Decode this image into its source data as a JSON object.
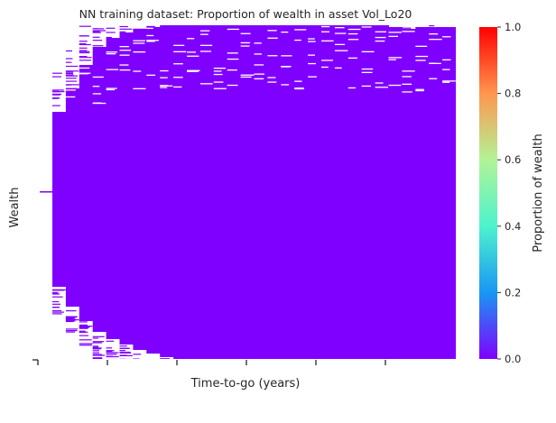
{
  "chart_data": {
    "type": "heatmap",
    "title": "NN training dataset: Proportion of wealth in asset Vol_Lo20",
    "xlabel": "Time-to-go (years)",
    "ylabel": "Wealth",
    "x_tick_labels": [],
    "y_tick_labels": [],
    "colorbar": {
      "label": "Proportion of wealth",
      "range": [
        0.0,
        1.0
      ],
      "ticks": [
        "0.0",
        "0.2",
        "0.4",
        "0.6",
        "0.8",
        "1.0"
      ],
      "colormap": "rainbow",
      "stops": [
        "#8000ff",
        "#1996f3",
        "#4df3ce",
        "#b2f396",
        "#ff964f",
        "#ff0000"
      ]
    },
    "value_summary": {
      "observed_cells_value": 0.0,
      "fill_color": "#8000ff",
      "missing_cells_color": "#ffffff",
      "note": "All non-missing cells are 0.0 across all time-to-go columns; coverage of wealth rows widens toward the middle and narrows at both time ends."
    }
  }
}
